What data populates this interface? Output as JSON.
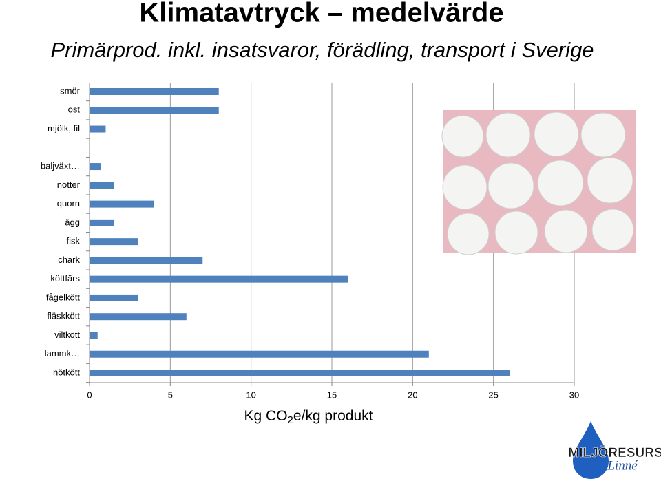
{
  "chart_data": {
    "type": "barh",
    "title": "Klimatavtryck – medelvärde",
    "subtitle": "Primärprod. inkl. insatsvaror, förädling, transport i Sverige",
    "xlabel_parts": [
      "Kg CO",
      "2",
      "e/kg produkt"
    ],
    "categories": [
      "smör",
      "ost",
      "mjölk, fil",
      null,
      "baljväxt…",
      "nötter",
      "quorn",
      "ägg",
      "fisk",
      "chark",
      "köttfärs",
      "fågelkött",
      "fläskkött",
      "viltkött",
      "lammk…",
      "nötkött"
    ],
    "values": [
      8,
      8,
      1,
      null,
      0.7,
      1.5,
      4,
      1.5,
      3,
      7,
      16,
      3,
      6,
      0.5,
      21,
      26
    ],
    "color": "#4f81bd",
    "xlim": [
      0,
      30
    ],
    "xticks": [
      0,
      5,
      10,
      15,
      20,
      25,
      30
    ],
    "grid": true
  },
  "logo": {
    "name": "MILJÖRESURS",
    "sub": "Linné"
  }
}
